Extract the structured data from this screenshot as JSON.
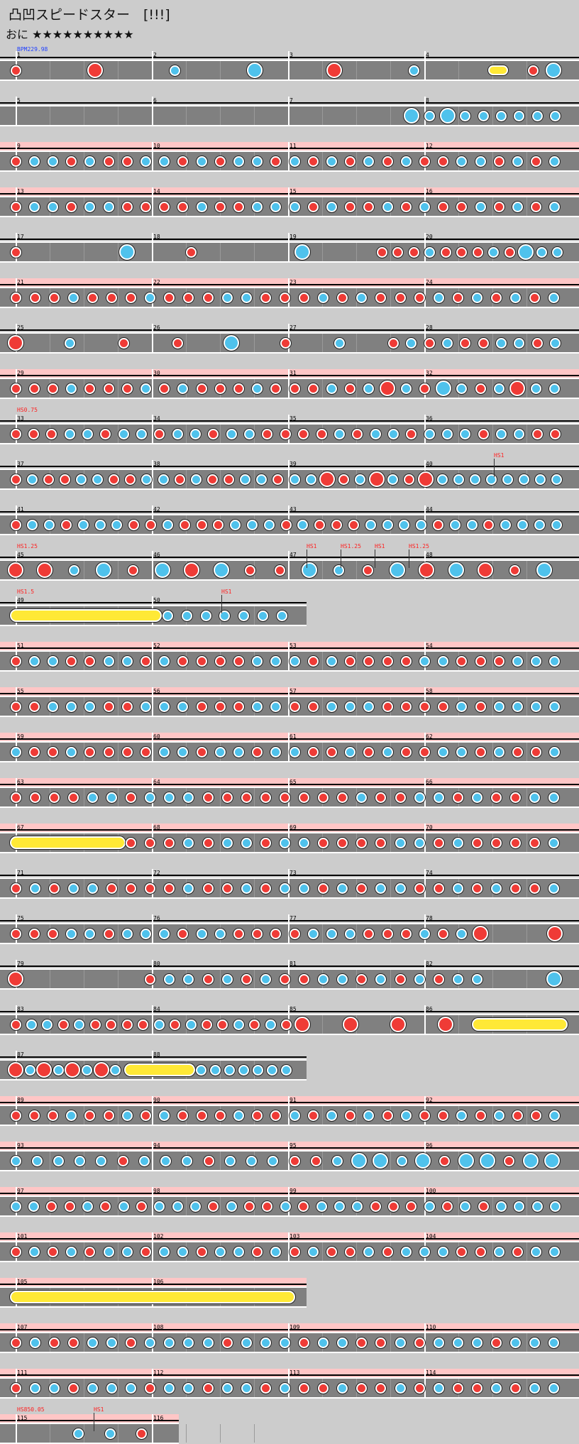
{
  "header": {
    "title": "凸凹スピードスター　[!!!]",
    "difficulty_label": "おに",
    "stars": "★★★★★★★★★★"
  },
  "tags": {
    "bpm": "BPM229.98",
    "hs_075": "HS0.75",
    "hs_1": "HS1",
    "hs_125": "HS1.25",
    "hs_15": "HS1.5",
    "hs_850": "HS850.05"
  },
  "colors": {
    "background": "#cccccc",
    "lane": "#808080",
    "highlight": "#ffc6c6",
    "don": "#ef3b36",
    "ka": "#4fc2ec",
    "roll": "#ffe936"
  },
  "measure_numbers": [
    "1",
    "2",
    "3",
    "4",
    "5",
    "6",
    "7",
    "8",
    "9",
    "10",
    "11",
    "12",
    "13",
    "14",
    "15",
    "16",
    "17",
    "18",
    "19",
    "20",
    "21",
    "22",
    "23",
    "24",
    "25",
    "26",
    "27",
    "28",
    "29",
    "30",
    "31",
    "32",
    "33",
    "34",
    "35",
    "36",
    "37",
    "38",
    "39",
    "40",
    "41",
    "42",
    "43",
    "44",
    "45",
    "46",
    "47",
    "48",
    "49",
    "50",
    "51",
    "52",
    "53",
    "54",
    "55",
    "56",
    "57",
    "58",
    "59",
    "60",
    "61",
    "62",
    "63",
    "64",
    "65",
    "66",
    "67",
    "68",
    "69",
    "70",
    "71",
    "72",
    "73",
    "74",
    "75",
    "76",
    "77",
    "78",
    "79",
    "80",
    "81",
    "82",
    "83",
    "84",
    "85",
    "86",
    "87",
    "88",
    "89",
    "90",
    "91",
    "92",
    "93",
    "94",
    "95",
    "96",
    "97",
    "98",
    "99",
    "100",
    "101",
    "102",
    "103",
    "104",
    "105",
    "106",
    "107",
    "108",
    "109",
    "110",
    "111",
    "112",
    "113",
    "114",
    "115",
    "116"
  ]
}
